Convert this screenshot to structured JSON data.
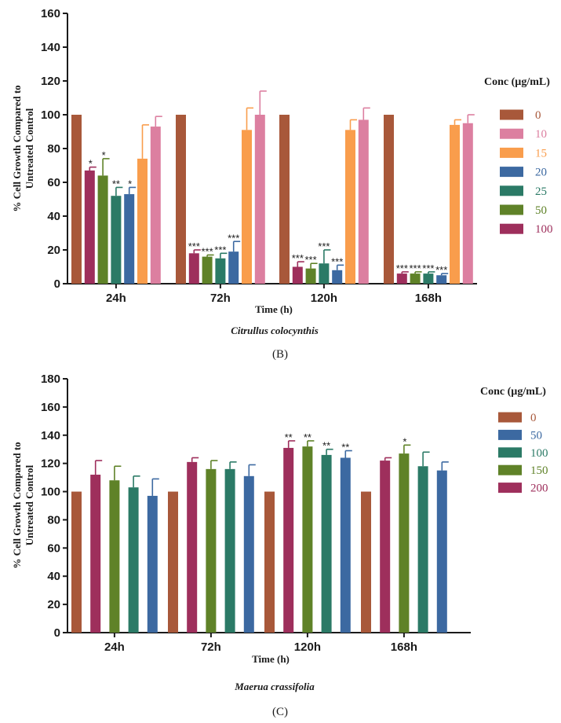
{
  "chart_data": [
    {
      "type": "bar",
      "title": "",
      "species": "Citrullus colocynthis",
      "panel_label": "(B)",
      "xlabel": "Time (h)",
      "ylabel_lines": [
        "% Cell Growth Compared to",
        "Untreated Control"
      ],
      "ylim": [
        0,
        160
      ],
      "yticks": [
        0,
        20,
        40,
        60,
        80,
        100,
        120,
        140,
        160
      ],
      "legend_title": "Conc (µg/mL)",
      "categories": [
        "24h",
        "72h",
        "120h",
        "168h"
      ],
      "series": [
        {
          "name": "0",
          "color": "#a8583a",
          "values": [
            100,
            100,
            100,
            100
          ],
          "errors": [
            0,
            0,
            0,
            0
          ],
          "sig": [
            "",
            "",
            "",
            ""
          ]
        },
        {
          "name": "100",
          "color": "#9e2f5c",
          "values": [
            67,
            18,
            10,
            6
          ],
          "errors": [
            2,
            2,
            3,
            1
          ],
          "sig": [
            "*",
            "***",
            "***",
            "***"
          ]
        },
        {
          "name": "50",
          "color": "#5f8228",
          "values": [
            64,
            16,
            9,
            6
          ],
          "errors": [
            10,
            1,
            3,
            1
          ],
          "sig": [
            "*",
            "***",
            "***",
            "***"
          ]
        },
        {
          "name": "25",
          "color": "#2b7a66",
          "values": [
            52,
            15,
            12,
            6
          ],
          "errors": [
            5,
            3,
            8,
            1
          ],
          "sig": [
            "**",
            "***",
            "***",
            "***"
          ]
        },
        {
          "name": "20",
          "color": "#3c69a1",
          "values": [
            53,
            19,
            8,
            5
          ],
          "errors": [
            4,
            6,
            3,
            1
          ],
          "sig": [
            "*",
            "***",
            "***",
            "***"
          ]
        },
        {
          "name": "15",
          "color": "#f99d4c",
          "values": [
            74,
            91,
            91,
            94
          ],
          "errors": [
            20,
            13,
            6,
            3
          ],
          "sig": [
            "",
            "",
            "",
            ""
          ]
        },
        {
          "name": "10",
          "color": "#dc7fa0",
          "values": [
            93,
            100,
            97,
            95
          ],
          "errors": [
            6,
            14,
            7,
            5
          ],
          "sig": [
            "",
            "",
            "",
            ""
          ]
        }
      ],
      "legend_order": [
        "0",
        "10",
        "15",
        "20",
        "25",
        "50",
        "100"
      ]
    },
    {
      "type": "bar",
      "title": "",
      "species": "Maerua crassifolia",
      "panel_label": "(C)",
      "xlabel": "Time (h)",
      "ylabel_lines": [
        "% Cell Growth Compared to",
        "Untreated Control"
      ],
      "ylim": [
        0,
        180
      ],
      "yticks": [
        0,
        20,
        40,
        60,
        80,
        100,
        120,
        140,
        160,
        180
      ],
      "legend_title": "Conc (µg/mL)",
      "categories": [
        "24h",
        "72h",
        "120h",
        "168h"
      ],
      "series": [
        {
          "name": "0",
          "color": "#a8583a",
          "values": [
            100,
            100,
            100,
            100
          ],
          "errors": [
            0,
            0,
            0,
            0
          ],
          "sig": [
            "",
            "",
            "",
            ""
          ]
        },
        {
          "name": "200",
          "color": "#9e2f5c",
          "values": [
            112,
            121,
            131,
            122
          ],
          "errors": [
            10,
            3,
            5,
            2
          ],
          "sig": [
            "",
            "",
            "**",
            ""
          ]
        },
        {
          "name": "150",
          "color": "#5f8228",
          "values": [
            108,
            116,
            132,
            127
          ],
          "errors": [
            10,
            6,
            4,
            6
          ],
          "sig": [
            "",
            "",
            "**",
            "*"
          ]
        },
        {
          "name": "100",
          "color": "#2b7a66",
          "values": [
            103,
            116,
            126,
            118
          ],
          "errors": [
            8,
            5,
            4,
            10
          ],
          "sig": [
            "",
            "",
            "**",
            ""
          ]
        },
        {
          "name": "50",
          "color": "#3c69a1",
          "values": [
            97,
            111,
            124,
            115
          ],
          "errors": [
            12,
            8,
            5,
            6
          ],
          "sig": [
            "",
            "",
            "**",
            ""
          ]
        }
      ],
      "legend_order": [
        "0",
        "50",
        "100",
        "150",
        "200"
      ]
    }
  ]
}
